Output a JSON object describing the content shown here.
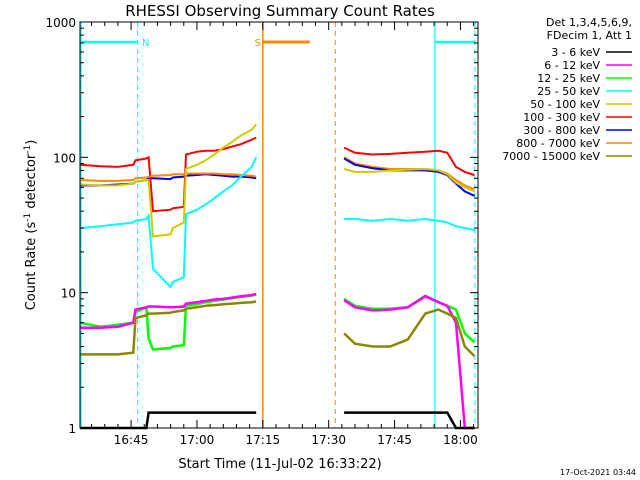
{
  "chart_data": {
    "type": "line",
    "title": "RHESSI Observing Summary Count Rates",
    "xlabel": "Start Time (11-Jul-02 16:33:22)",
    "ylabel_parts": [
      "Count Rate (s",
      "-1",
      " detector",
      "-1",
      ")"
    ],
    "yscale": "log",
    "ylim": [
      1,
      1000
    ],
    "xlim_minutes": [
      33.37,
      124.0
    ],
    "y_ticks": [
      {
        "value": 1,
        "label": "1"
      },
      {
        "value": 10,
        "label": "10"
      },
      {
        "value": 100,
        "label": "100"
      },
      {
        "value": 1000,
        "label": "1000"
      }
    ],
    "x_ticks": [
      {
        "value": 45,
        "label": "16:45"
      },
      {
        "value": 60,
        "label": "17:00"
      },
      {
        "value": 75,
        "label": "17:15"
      },
      {
        "value": 90,
        "label": "17:30"
      },
      {
        "value": 105,
        "label": "17:45"
      },
      {
        "value": 120,
        "label": "18:00"
      }
    ],
    "legend_header": [
      "Det 1,3,4,5,6,9,",
      "FDecim 1, Att 1"
    ],
    "series": [
      {
        "name": "3 - 6 keV",
        "color": "#000000"
      },
      {
        "name": "6 - 12 keV",
        "color": "#ff00ff"
      },
      {
        "name": "12 - 25 keV",
        "color": "#00ff00"
      },
      {
        "name": "25 - 50 keV",
        "color": "#00ffff"
      },
      {
        "name": "50 - 100 keV",
        "color": "#cccc00"
      },
      {
        "name": "100 - 300 keV",
        "color": "#ff0000"
      },
      {
        "name": "300 - 800 keV",
        "color": "#0000ff"
      },
      {
        "name": "800 - 7000 keV",
        "color": "#ff8800"
      },
      {
        "name": "7000 - 15000 keV",
        "color": "#888800"
      }
    ],
    "segments": [
      {
        "x": [
          33.4,
          38,
          42,
          45.5,
          46,
          48.5,
          49,
          50,
          54,
          54.5,
          57,
          57.5,
          60,
          62,
          64,
          66,
          68,
          70,
          72.5,
          73.5
        ],
        "series_values": {
          "300 - 800 keV": [
            62,
            62,
            63,
            64,
            66,
            68,
            70,
            70,
            69,
            71,
            72,
            73,
            74,
            75,
            74,
            73,
            72,
            72,
            71,
            70
          ],
          "100 - 300 keV": [
            88,
            86,
            85,
            88,
            95,
            98,
            100,
            40,
            41,
            42,
            43,
            105,
            110,
            112,
            112,
            115,
            120,
            125,
            135,
            140
          ],
          "800 - 7000 keV": [
            68,
            67,
            67,
            68,
            70,
            71,
            72,
            73,
            74,
            75,
            75,
            76,
            76,
            76,
            76,
            75,
            75,
            74,
            73,
            72
          ],
          "50 - 100 keV": [
            63,
            62,
            62,
            64,
            66,
            68,
            68,
            26,
            27,
            30,
            33,
            82,
            88,
            95,
            105,
            118,
            130,
            145,
            160,
            175
          ],
          "25 - 50 keV": [
            30,
            31,
            32,
            33,
            34,
            35,
            37,
            15,
            11,
            12,
            13,
            38,
            41,
            45,
            50,
            56,
            62,
            72,
            85,
            100
          ],
          "12 - 25 keV": [
            6.0,
            5.6,
            5.8,
            6.0,
            7.2,
            7.8,
            4.6,
            3.8,
            3.9,
            4.0,
            4.1,
            8.0,
            8.2,
            8.5,
            8.7,
            8.9,
            9.1,
            9.3,
            9.5,
            9.7
          ],
          "6 - 12 keV": [
            5.5,
            5.5,
            5.6,
            6.0,
            7.5,
            7.8,
            7.9,
            7.9,
            7.8,
            7.8,
            7.9,
            8.3,
            8.5,
            8.7,
            8.9,
            9.0,
            9.2,
            9.4,
            9.6,
            9.8
          ],
          "7000 - 15000 keV": [
            3.5,
            3.5,
            3.5,
            3.6,
            6.5,
            6.8,
            7.0,
            7.0,
            7.1,
            7.2,
            7.4,
            7.6,
            7.8,
            8.0,
            8.1,
            8.2,
            8.3,
            8.4,
            8.5,
            8.6
          ],
          "3 - 6 keV": [
            1,
            1,
            1,
            1,
            1,
            1,
            1.3,
            1.3,
            1.3,
            1.3,
            1.3,
            1.3,
            1.3,
            1.3,
            1.3,
            1.3,
            1.3,
            1.3,
            1.3,
            1.3
          ]
        }
      },
      {
        "x": [
          93.5,
          96,
          100,
          104,
          108,
          112,
          115,
          117,
          119,
          121,
          123.2
        ],
        "series_values": {
          "100 - 300 keV": [
            118,
            108,
            105,
            106,
            108,
            110,
            112,
            108,
            85,
            78,
            74
          ],
          "800 - 7000 keV": [
            100,
            90,
            85,
            82,
            82,
            82,
            80,
            76,
            68,
            62,
            58
          ],
          "300 - 800 keV": [
            98,
            88,
            83,
            80,
            80,
            80,
            78,
            74,
            64,
            56,
            52
          ],
          "50 - 100 keV": [
            82,
            78,
            78,
            80,
            81,
            82,
            80,
            75,
            65,
            60,
            56
          ],
          "25 - 50 keV": [
            35,
            35,
            34,
            35,
            34,
            35,
            34,
            33,
            31,
            30,
            29
          ],
          "12 - 25 keV": [
            9.0,
            8.0,
            7.6,
            7.6,
            7.8,
            9.5,
            8.5,
            8.0,
            7.5,
            5.0,
            4.3
          ],
          "6 - 12 keV": [
            8.8,
            7.8,
            7.4,
            7.5,
            7.8,
            9.4,
            8.5,
            8.0,
            6.0,
            1,
            1
          ],
          "7000 - 15000 keV": [
            5.0,
            4.2,
            4.0,
            4.0,
            4.5,
            7.0,
            7.5,
            7.0,
            6.5,
            4.0,
            3.4
          ],
          "3 - 6 keV": [
            1.3,
            1.3,
            1.3,
            1.3,
            1.3,
            1.3,
            1.3,
            1.3,
            1,
            1,
            1
          ]
        }
      }
    ],
    "orbit_markers": [
      {
        "label": "N",
        "color": "#00ffff",
        "start": 33.6,
        "end": 46.5,
        "style": "solid-dashed"
      },
      {
        "label": "S",
        "color": "#ff8800",
        "start": 75.0,
        "end": 85.7,
        "style": "solid-bar"
      },
      {
        "label": "",
        "color": "#ff8800",
        "start": 85.7,
        "end": 91.5,
        "style": "dashed"
      },
      {
        "label": "",
        "color": "#00ffff",
        "start": 114.2,
        "end": 123.3,
        "style": "solid-dashed"
      }
    ]
  },
  "footer": {
    "timestamp": "17-Oct-2021 03:44"
  }
}
